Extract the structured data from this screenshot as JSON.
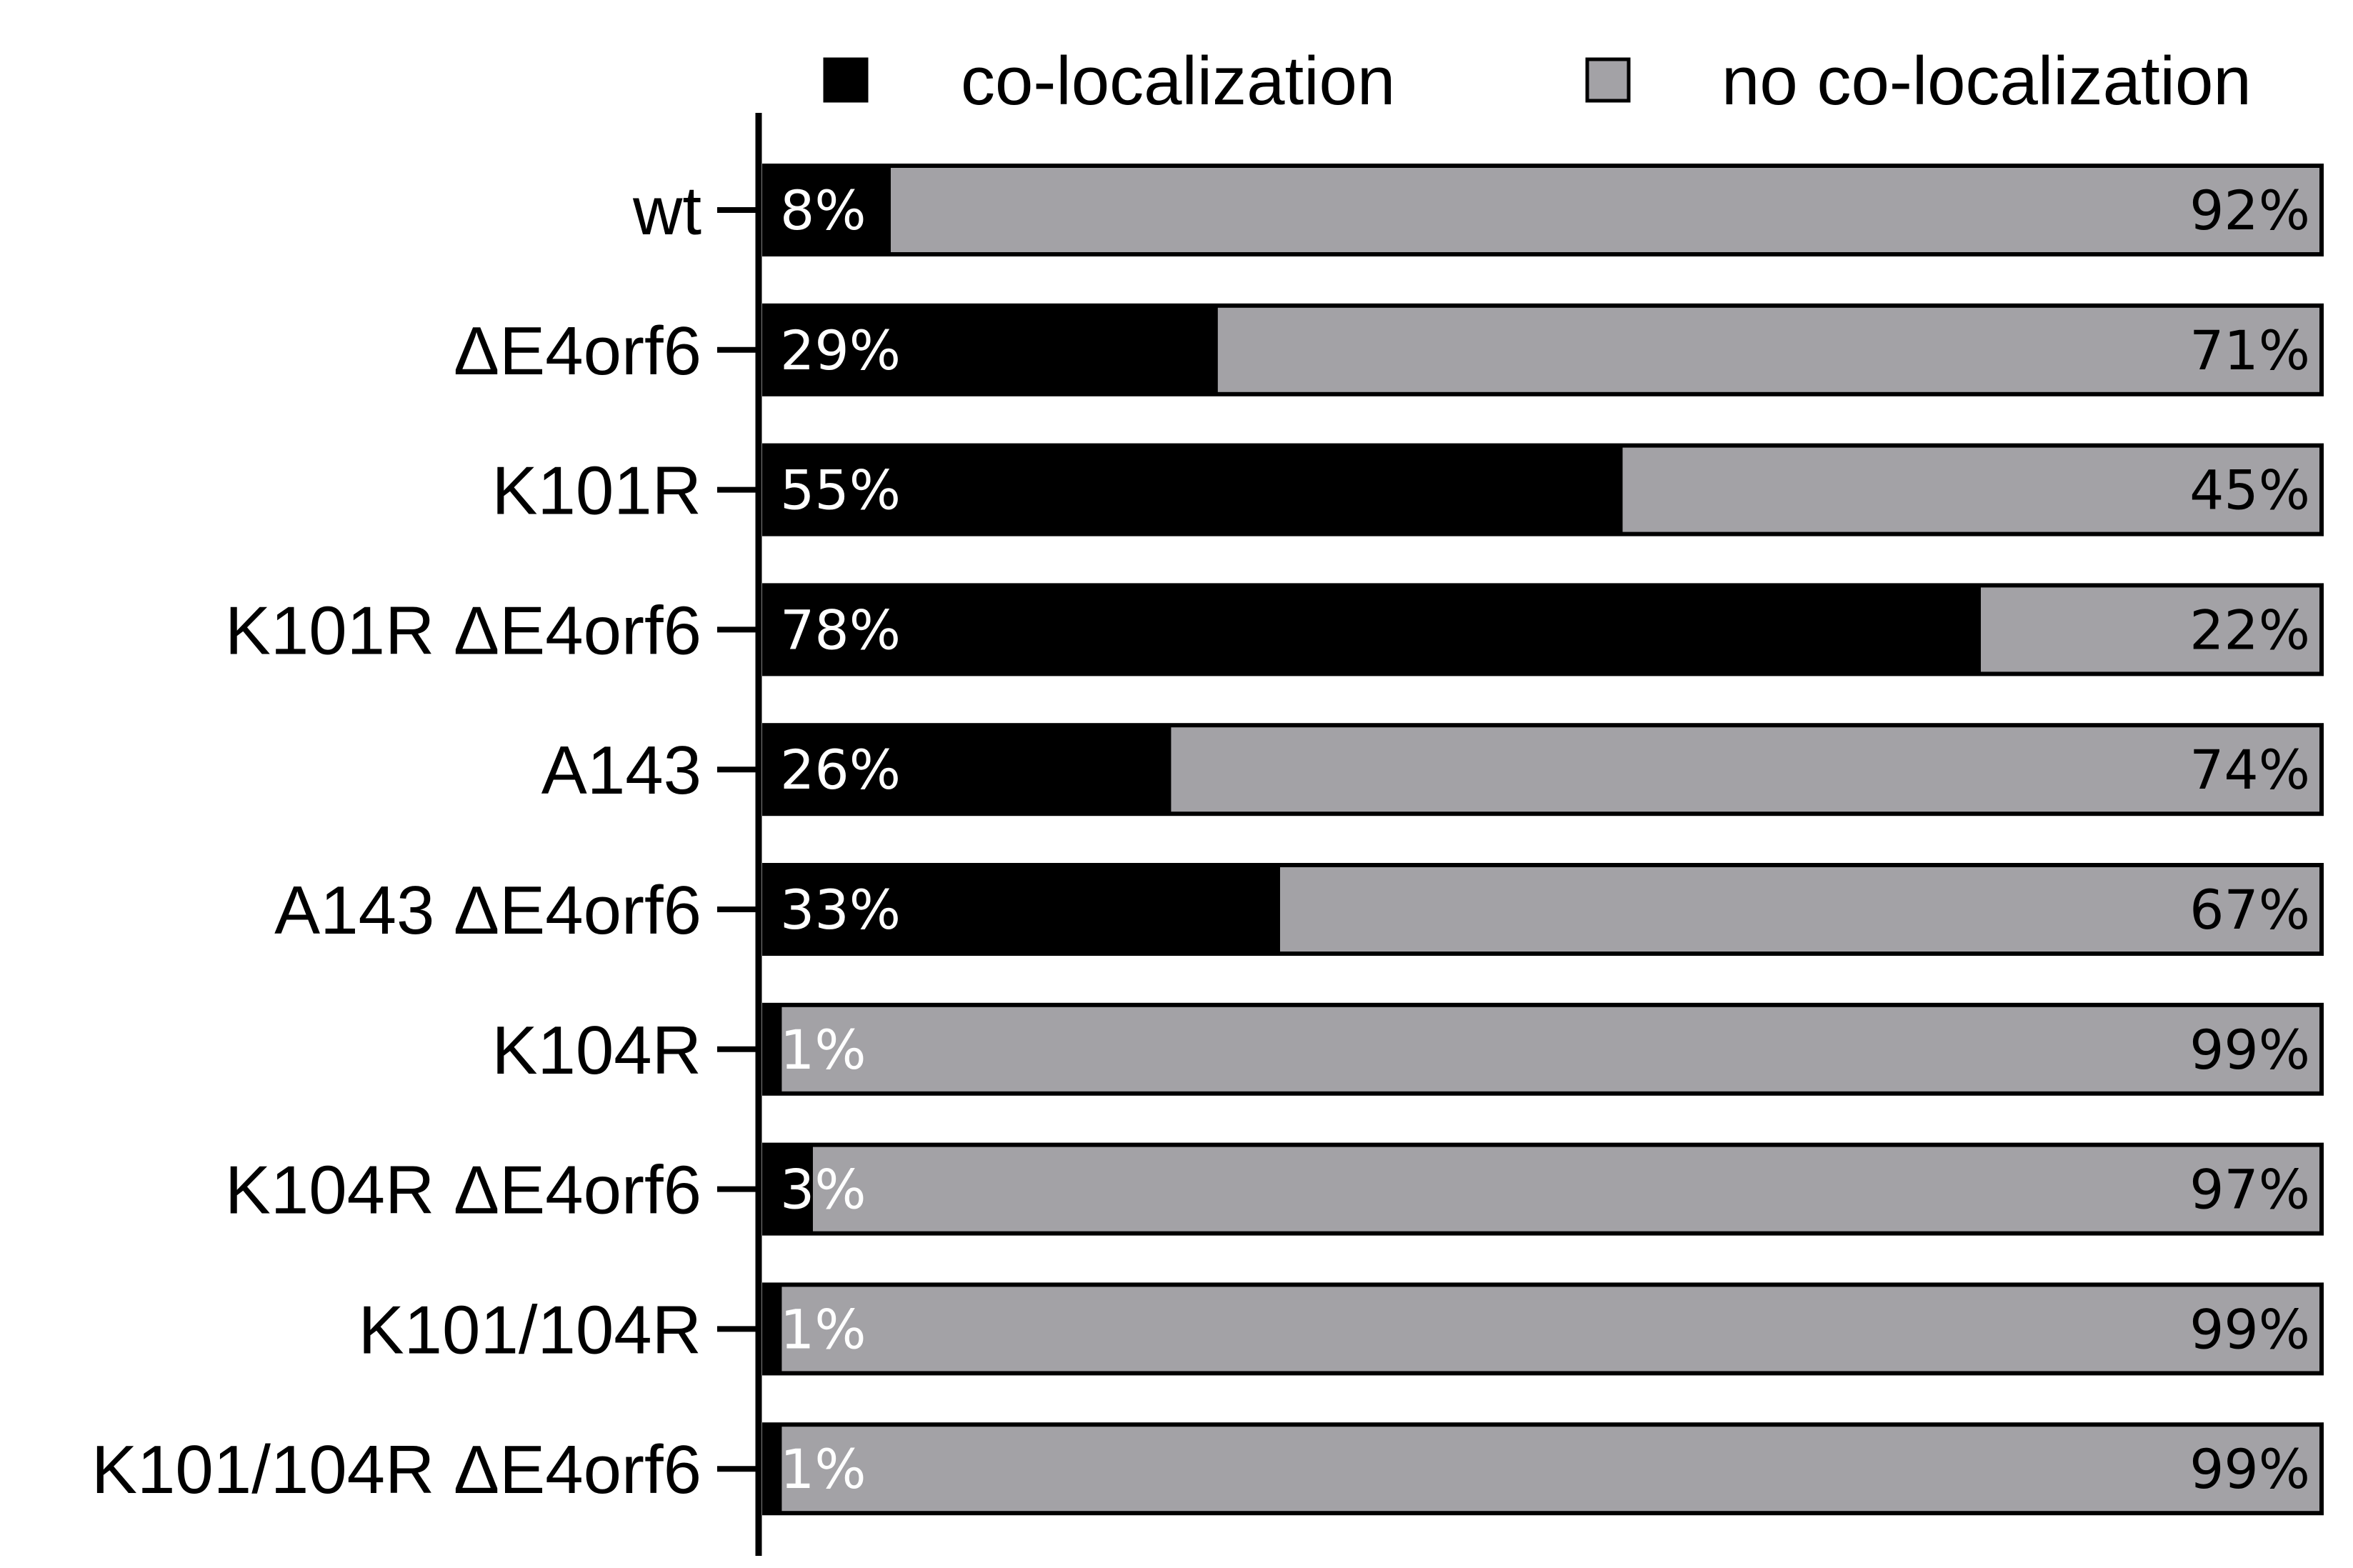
{
  "chart_data": {
    "type": "bar",
    "orientation": "horizontal",
    "stacked": true,
    "normalized_percent": true,
    "categories": [
      "wt",
      "ΔE4orf6",
      "K101R",
      "K101R ΔE4orf6",
      "A143",
      "A143 ΔE4orf6",
      "K104R",
      "K104R ΔE4orf6",
      "K101/104R",
      "K101/104R ΔE4orf6"
    ],
    "series": [
      {
        "name": "co-localization",
        "color": "#000000",
        "values": [
          8,
          29,
          55,
          78,
          26,
          33,
          1,
          3,
          1,
          1
        ],
        "labels": [
          "8%",
          "29%",
          "55%",
          "78%",
          "26%",
          "33%",
          "1%",
          "3%",
          "1%",
          "1%"
        ]
      },
      {
        "name": "no co-localization",
        "color": "#a3a2a6",
        "values": [
          92,
          71,
          45,
          22,
          74,
          67,
          99,
          97,
          99,
          99
        ],
        "labels": [
          "92%",
          "71%",
          "45%",
          "22%",
          "74%",
          "67%",
          "99%",
          "97%",
          "99%",
          "99%"
        ]
      }
    ],
    "xlim": [
      0,
      100
    ],
    "title": "",
    "xlabel": "",
    "ylabel": "",
    "legend": "top",
    "grid": false
  }
}
